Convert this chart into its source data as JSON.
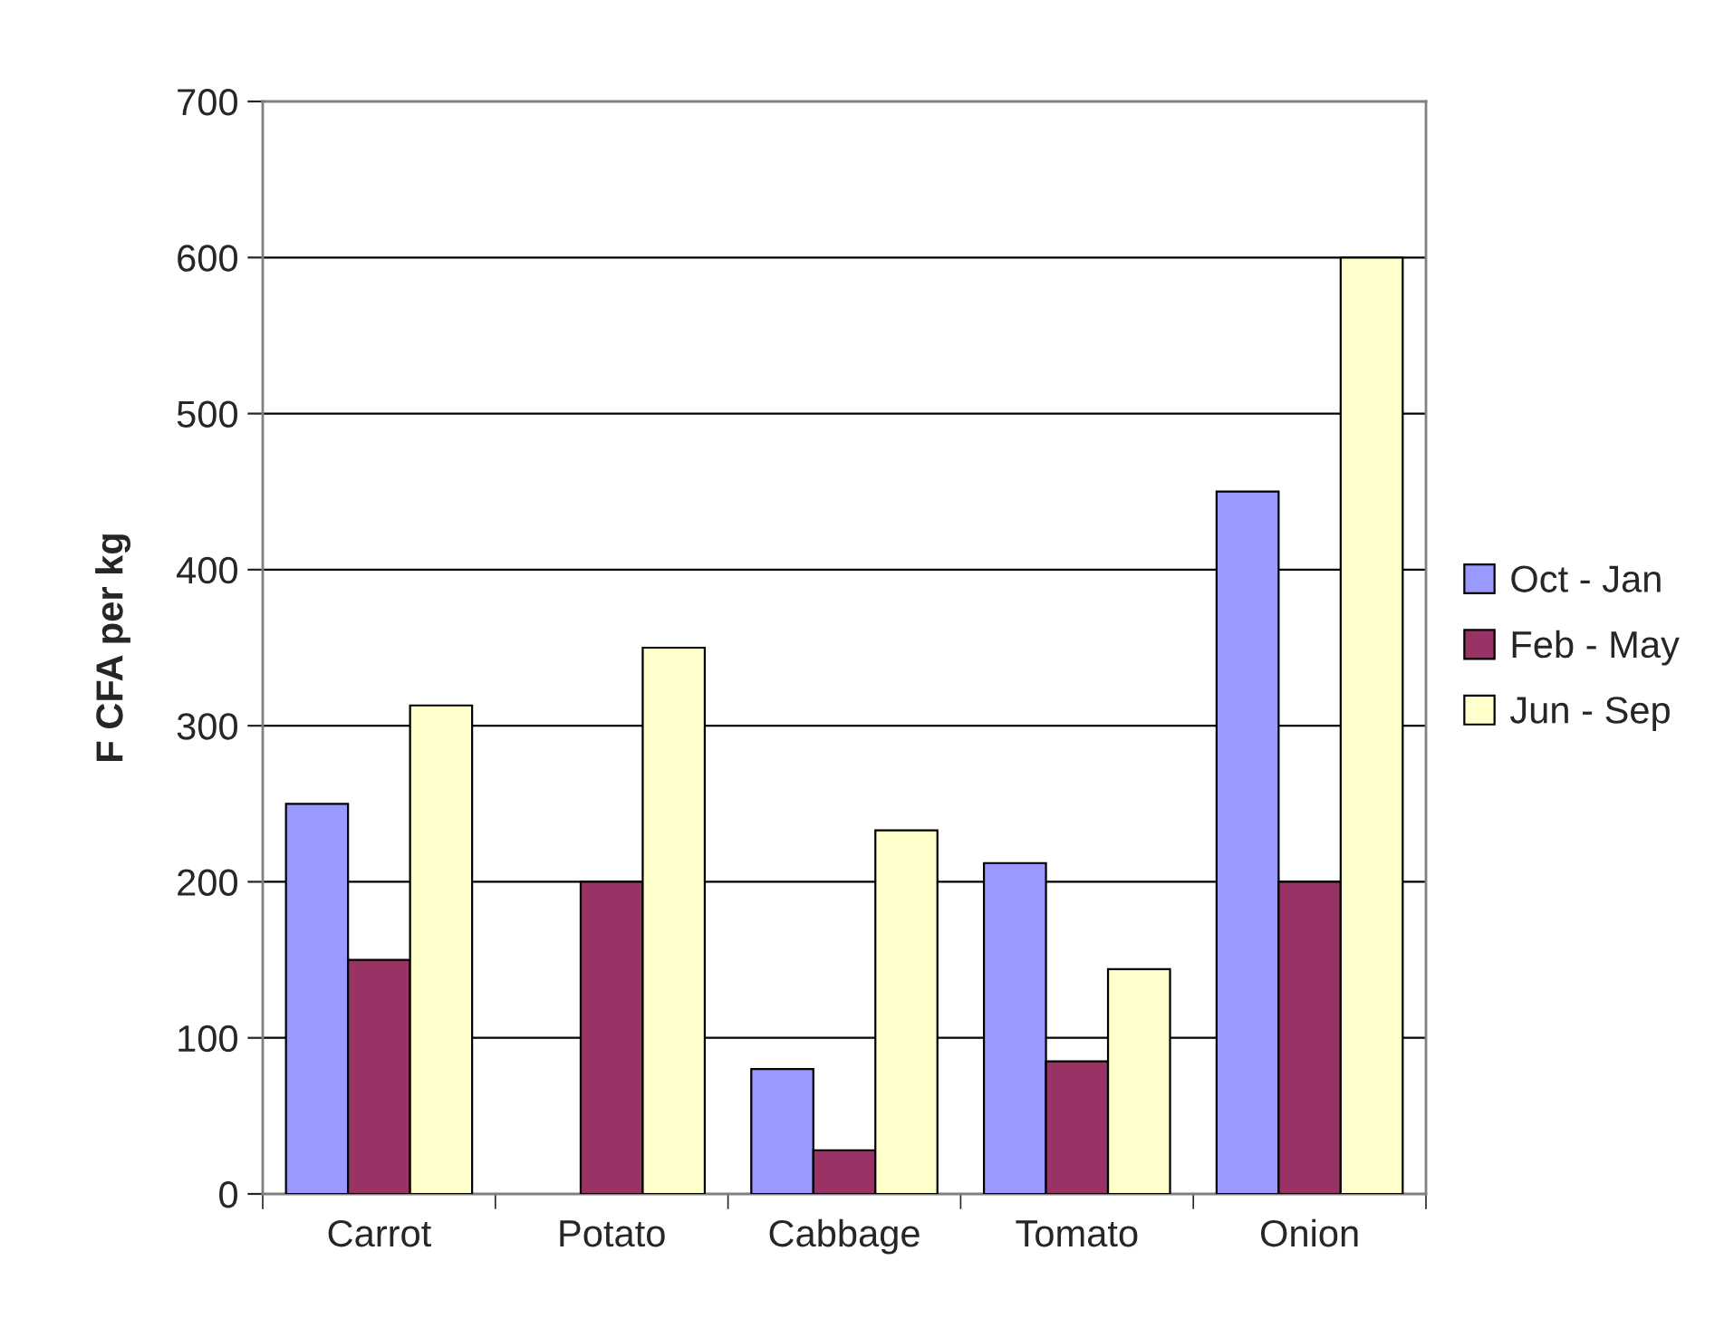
{
  "chart_data": {
    "type": "bar",
    "ylabel": "F CFA per kg",
    "categories": [
      "Carrot",
      "Potato",
      "Cabbage",
      "Tomato",
      "Onion"
    ],
    "series": [
      {
        "name": "Oct - Jan",
        "color": "#9999ff",
        "values": [
          250,
          null,
          80,
          212,
          450
        ]
      },
      {
        "name": "Feb - May",
        "color": "#993366",
        "values": [
          150,
          200,
          28,
          85,
          200
        ]
      },
      {
        "name": "Jun - Sep",
        "color": "#ffffcc",
        "values": [
          313,
          350,
          233,
          144,
          600
        ]
      }
    ],
    "ylim": [
      0,
      700
    ],
    "yticks": [
      0,
      100,
      200,
      300,
      400,
      500,
      600,
      700
    ],
    "grid": "y",
    "legend": "right"
  }
}
